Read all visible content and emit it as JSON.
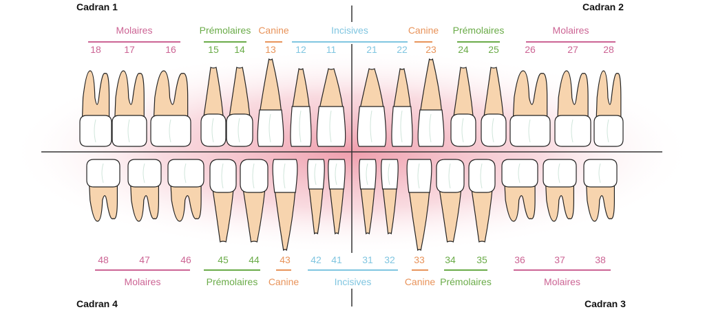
{
  "colors": {
    "molaires": "#cc6494",
    "premolaires": "#6aab48",
    "canine": "#e8935a",
    "incisives": "#7fc5e0",
    "root": "#f7d4ae",
    "crown": "#ffffff",
    "glow": "#f0a7b4",
    "axis": "#333333"
  },
  "quadrants": {
    "q1": "Cadran 1",
    "q2": "Cadran 2",
    "q3": "Cadran 3",
    "q4": "Cadran 4"
  },
  "upper": {
    "groups": [
      {
        "label": "Molaires",
        "type": "molaires"
      },
      {
        "label": "Prémolaires",
        "type": "premolaires"
      },
      {
        "label": "Canine",
        "type": "canine"
      },
      {
        "label": "Incisives",
        "type": "incisives"
      },
      {
        "label": "Canine",
        "type": "canine"
      },
      {
        "label": "Prémolaires",
        "type": "premolaires"
      },
      {
        "label": "Molaires",
        "type": "molaires"
      }
    ],
    "teeth": [
      {
        "n": "18",
        "type": "molaires"
      },
      {
        "n": "17",
        "type": "molaires"
      },
      {
        "n": "16",
        "type": "molaires"
      },
      {
        "n": "15",
        "type": "premolaires"
      },
      {
        "n": "14",
        "type": "premolaires"
      },
      {
        "n": "13",
        "type": "canine"
      },
      {
        "n": "12",
        "type": "incisives"
      },
      {
        "n": "11",
        "type": "incisives"
      },
      {
        "n": "21",
        "type": "incisives"
      },
      {
        "n": "22",
        "type": "incisives"
      },
      {
        "n": "23",
        "type": "canine"
      },
      {
        "n": "24",
        "type": "premolaires"
      },
      {
        "n": "25",
        "type": "premolaires"
      },
      {
        "n": "26",
        "type": "molaires"
      },
      {
        "n": "27",
        "type": "molaires"
      },
      {
        "n": "28",
        "type": "molaires"
      }
    ]
  },
  "lower": {
    "groups": [
      {
        "label": "Molaires",
        "type": "molaires"
      },
      {
        "label": "Prémolaires",
        "type": "premolaires"
      },
      {
        "label": "Canine",
        "type": "canine"
      },
      {
        "label": "Incisives",
        "type": "incisives"
      },
      {
        "label": "Canine",
        "type": "canine"
      },
      {
        "label": "Prémolaires",
        "type": "premolaires"
      },
      {
        "label": "Molaires",
        "type": "molaires"
      }
    ],
    "teeth": [
      {
        "n": "48",
        "type": "molaires"
      },
      {
        "n": "47",
        "type": "molaires"
      },
      {
        "n": "46",
        "type": "molaires"
      },
      {
        "n": "45",
        "type": "premolaires"
      },
      {
        "n": "44",
        "type": "premolaires"
      },
      {
        "n": "43",
        "type": "canine"
      },
      {
        "n": "42",
        "type": "incisives"
      },
      {
        "n": "41",
        "type": "incisives"
      },
      {
        "n": "31",
        "type": "incisives"
      },
      {
        "n": "32",
        "type": "incisives"
      },
      {
        "n": "33",
        "type": "canine"
      },
      {
        "n": "34",
        "type": "premolaires"
      },
      {
        "n": "35",
        "type": "premolaires"
      },
      {
        "n": "36",
        "type": "molaires"
      },
      {
        "n": "37",
        "type": "molaires"
      },
      {
        "n": "38",
        "type": "molaires"
      }
    ]
  }
}
